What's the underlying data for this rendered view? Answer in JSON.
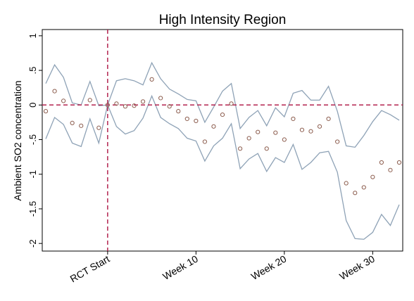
{
  "chart_data": {
    "type": "line",
    "title": "High Intensity Region",
    "y_label": "Ambient SO2 concentration",
    "x": [
      -7,
      -6,
      -5,
      -4,
      -3,
      -2,
      -1,
      0,
      1,
      2,
      3,
      4,
      5,
      6,
      7,
      8,
      9,
      10,
      11,
      12,
      13,
      14,
      15,
      16,
      17,
      18,
      19,
      20,
      21,
      22,
      23,
      24,
      25,
      26,
      27,
      28,
      29,
      30,
      31,
      32,
      33
    ],
    "series": [
      {
        "style": "markers",
        "color": "#8c5d4e",
        "values": [
          -0.09,
          0.2,
          0.06,
          -0.26,
          -0.3,
          0.07,
          -0.33,
          0,
          0.02,
          -0.02,
          -0.01,
          0.05,
          0.37,
          0.1,
          -0.02,
          -0.09,
          -0.2,
          -0.23,
          -0.53,
          -0.31,
          -0.14,
          0.02,
          -0.63,
          -0.48,
          -0.39,
          -0.63,
          -0.4,
          -0.5,
          -0.2,
          -0.36,
          -0.38,
          -0.31,
          -0.2,
          -0.53,
          -1.13,
          -1.27,
          -1.19,
          -1.04,
          -0.83,
          -0.94,
          -0.83
        ]
      },
      {
        "style": "line",
        "color": "#8ea2b6",
        "values": [
          0.31,
          0.58,
          0.4,
          0.03,
          0,
          0.34,
          -0.01,
          0,
          0.35,
          0.38,
          0.35,
          0.29,
          0.61,
          0.38,
          0.23,
          0.16,
          0.08,
          0.06,
          -0.25,
          -0.03,
          0.2,
          0.31,
          -0.34,
          -0.18,
          -0.08,
          -0.3,
          -0.04,
          -0.17,
          0.17,
          0.21,
          0.07,
          0.07,
          0.27,
          -0.09,
          -0.59,
          -0.61,
          -0.44,
          -0.24,
          -0.08,
          -0.14,
          -0.22
        ]
      },
      {
        "style": "line",
        "color": "#8ea2b6",
        "values": [
          -0.49,
          -0.18,
          -0.28,
          -0.55,
          -0.6,
          -0.2,
          -0.55,
          0,
          -0.31,
          -0.42,
          -0.37,
          -0.19,
          0.13,
          -0.18,
          -0.27,
          -0.34,
          -0.48,
          -0.52,
          -0.81,
          -0.59,
          -0.48,
          -0.27,
          -0.92,
          -0.78,
          -0.7,
          -0.96,
          -0.76,
          -0.83,
          -0.57,
          -0.93,
          -0.83,
          -0.69,
          -0.67,
          -0.97,
          -1.67,
          -1.93,
          -1.94,
          -1.84,
          -1.58,
          -1.74,
          -1.44
        ]
      }
    ],
    "xlim": [
      -7.4,
      33.4
    ],
    "ylim": [
      -2.11,
      1.09
    ],
    "xticks": [
      {
        "value": 0,
        "label": "RCT Start"
      },
      {
        "value": 10,
        "label": "Week 10"
      },
      {
        "value": 20,
        "label": "Week 20"
      },
      {
        "value": 30,
        "label": "Week 30"
      }
    ],
    "yticks": [
      1,
      {
        "value": 0.5,
        "label": ".5"
      },
      0,
      {
        "value": -0.5,
        "label": "-.5"
      },
      -1,
      {
        "value": -1.5,
        "label": "-1.5"
      },
      -2
    ],
    "xline": 0,
    "yline": 0,
    "refline_color": "#b3234f"
  }
}
